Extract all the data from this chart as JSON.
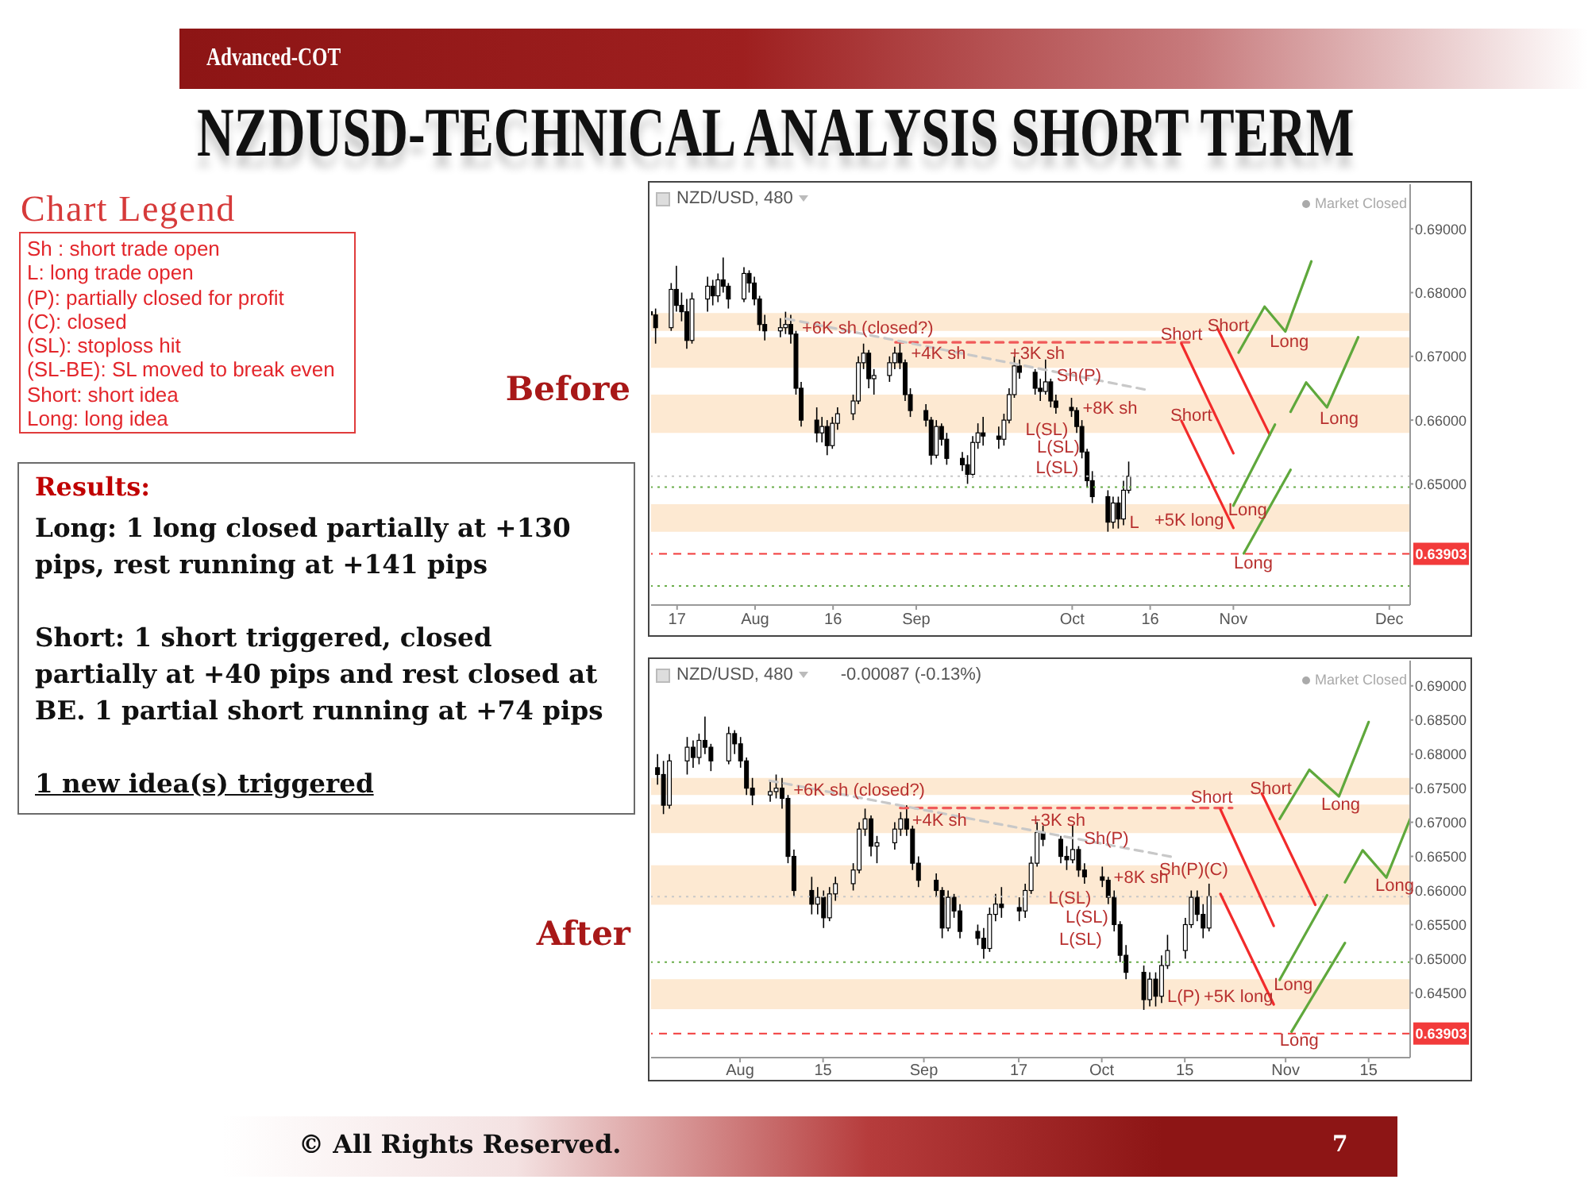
{
  "chart_data": [
    {
      "type": "other",
      "title": "NZDUSD-TECHNICAL ANALYSIS SHORT TERM",
      "subtitle": "Advanced-COT",
      "annotations": [
        "© All Rights Reserved.",
        "7"
      ]
    },
    {
      "type": "other",
      "title": "Chart Legend",
      "annotations": [
        "Sh : short trade open",
        "L: long trade open",
        "(P): partially closed for profit",
        "(C): closed",
        "(SL): stoploss hit",
        "(SL-BE): SL moved to break even",
        "Short: short idea",
        "Long: long idea"
      ]
    },
    {
      "type": "candlestick",
      "title": "Before",
      "subtitle": "NZD/USD, 480",
      "color": "#000000",
      "x": [
        "--07-12",
        "--07-13",
        "--07-16",
        "--07-17",
        "--07-18",
        "--07-19",
        "--07-20",
        "--07-23",
        "--07-24",
        "--07-25",
        "--07-26",
        "--07-27",
        "--07-30",
        "--07-31",
        "--08-01",
        "--08-02",
        "--08-03",
        "--08-06",
        "--08-07",
        "--08-08",
        "--08-09",
        "--08-10",
        "--08-13",
        "--08-14",
        "--08-15",
        "--08-16",
        "--08-17",
        "--08-20",
        "--08-21",
        "--08-22",
        "--08-23",
        "--08-24",
        "--08-27",
        "--08-28",
        "--08-29",
        "--08-30",
        "--08-31",
        "--09-03",
        "--09-04",
        "--09-05",
        "--09-06",
        "--09-07",
        "--09-10",
        "--09-11",
        "--09-12",
        "--09-13",
        "--09-14",
        "--09-17",
        "--09-18",
        "--09-19",
        "--09-20",
        "--09-21",
        "--09-24",
        "--09-25",
        "--09-26",
        "--09-27",
        "--09-28",
        "--10-01",
        "--10-02",
        "--10-03",
        "--10-04",
        "--10-05",
        "--10-08",
        "--10-09",
        "--10-10",
        "--10-11",
        "--10-12"
      ],
      "ohlc": [
        [
          0.677,
          0.679,
          0.6745,
          0.6765
        ],
        [
          0.6765,
          0.6775,
          0.672,
          0.6745
        ],
        [
          0.6745,
          0.6815,
          0.674,
          0.6805
        ],
        [
          0.6805,
          0.6842,
          0.677,
          0.678
        ],
        [
          0.678,
          0.68,
          0.6755,
          0.677
        ],
        [
          0.677,
          0.679,
          0.6712,
          0.6725
        ],
        [
          0.6725,
          0.68,
          0.672,
          0.679
        ],
        [
          0.679,
          0.6825,
          0.677,
          0.681
        ],
        [
          0.681,
          0.682,
          0.678,
          0.6795
        ],
        [
          0.6795,
          0.683,
          0.6785,
          0.682
        ],
        [
          0.682,
          0.6855,
          0.68,
          0.681
        ],
        [
          0.681,
          0.6815,
          0.6775,
          0.679
        ],
        [
          0.679,
          0.684,
          0.6785,
          0.683
        ],
        [
          0.683,
          0.6835,
          0.68,
          0.6815
        ],
        [
          0.6815,
          0.6825,
          0.678,
          0.679
        ],
        [
          0.679,
          0.6795,
          0.674,
          0.675
        ],
        [
          0.675,
          0.6765,
          0.6725,
          0.674
        ],
        [
          0.674,
          0.676,
          0.673,
          0.6745
        ],
        [
          0.6745,
          0.677,
          0.6735,
          0.675
        ],
        [
          0.675,
          0.6765,
          0.672,
          0.6735
        ],
        [
          0.6735,
          0.674,
          0.664,
          0.665
        ],
        [
          0.665,
          0.666,
          0.659,
          0.66
        ],
        [
          0.66,
          0.662,
          0.6565,
          0.658
        ],
        [
          0.658,
          0.6605,
          0.6565,
          0.659
        ],
        [
          0.659,
          0.66,
          0.6545,
          0.656
        ],
        [
          0.656,
          0.6605,
          0.6555,
          0.6595
        ],
        [
          0.6595,
          0.662,
          0.6585,
          0.661
        ],
        [
          0.661,
          0.664,
          0.66,
          0.663
        ],
        [
          0.663,
          0.67,
          0.6625,
          0.669
        ],
        [
          0.669,
          0.672,
          0.668,
          0.6705
        ],
        [
          0.6705,
          0.671,
          0.665,
          0.6665
        ],
        [
          0.6665,
          0.668,
          0.664,
          0.667
        ],
        [
          0.667,
          0.67,
          0.666,
          0.669
        ],
        [
          0.669,
          0.6715,
          0.668,
          0.6705
        ],
        [
          0.6705,
          0.6725,
          0.668,
          0.669
        ],
        [
          0.669,
          0.6695,
          0.663,
          0.664
        ],
        [
          0.664,
          0.665,
          0.6605,
          0.6615
        ],
        [
          0.6615,
          0.6625,
          0.659,
          0.66
        ],
        [
          0.66,
          0.6605,
          0.653,
          0.6545
        ],
        [
          0.6545,
          0.66,
          0.654,
          0.659
        ],
        [
          0.659,
          0.6595,
          0.656,
          0.657
        ],
        [
          0.657,
          0.658,
          0.653,
          0.654
        ],
        [
          0.654,
          0.655,
          0.652,
          0.653
        ],
        [
          0.653,
          0.6545,
          0.65,
          0.6515
        ],
        [
          0.6515,
          0.6575,
          0.651,
          0.6565
        ],
        [
          0.6565,
          0.6595,
          0.6555,
          0.658
        ],
        [
          0.658,
          0.6605,
          0.656,
          0.6575
        ],
        [
          0.6575,
          0.659,
          0.6555,
          0.657
        ],
        [
          0.657,
          0.661,
          0.656,
          0.66
        ],
        [
          0.66,
          0.665,
          0.6595,
          0.664
        ],
        [
          0.664,
          0.67,
          0.6635,
          0.6685
        ],
        [
          0.6685,
          0.6695,
          0.6665,
          0.6675
        ],
        [
          0.6675,
          0.668,
          0.664,
          0.665
        ],
        [
          0.665,
          0.6665,
          0.663,
          0.6645
        ],
        [
          0.6645,
          0.6695,
          0.664,
          0.666
        ],
        [
          0.666,
          0.6665,
          0.662,
          0.663
        ],
        [
          0.663,
          0.664,
          0.661,
          0.662
        ],
        [
          0.662,
          0.6635,
          0.6605,
          0.6615
        ],
        [
          0.6615,
          0.662,
          0.658,
          0.659
        ],
        [
          0.659,
          0.66,
          0.654,
          0.655
        ],
        [
          0.655,
          0.6555,
          0.6495,
          0.6505
        ],
        [
          0.6505,
          0.652,
          0.647,
          0.648
        ],
        [
          0.648,
          0.649,
          0.6425,
          0.644
        ],
        [
          0.644,
          0.648,
          0.643,
          0.647
        ],
        [
          0.647,
          0.648,
          0.643,
          0.6445
        ],
        [
          0.6445,
          0.6505,
          0.6435,
          0.649
        ],
        [
          0.649,
          0.6535,
          0.6485,
          0.6512
        ]
      ],
      "xlim": [
        "--07-12",
        "--12-05"
      ],
      "xticks": [
        {
          "value": "--07-17",
          "label": "17"
        },
        {
          "value": "--08-01",
          "label": "Aug"
        },
        {
          "value": "--08-16",
          "label": "16"
        },
        {
          "value": "--09-01",
          "label": "Sep"
        },
        {
          "value": "--10-01",
          "label": "Oct"
        },
        {
          "value": "--10-16",
          "label": "16"
        },
        {
          "value": "--11-01",
          "label": "Nov"
        },
        {
          "value": "--12-01",
          "label": "Dec"
        }
      ],
      "ylim": [
        0.631,
        0.697
      ],
      "yticks": [
        {
          "value": 0.65,
          "label": "0.65000"
        },
        {
          "value": 0.66,
          "label": "0.66000"
        },
        {
          "value": 0.67,
          "label": "0.67000"
        },
        {
          "value": 0.68,
          "label": "0.68000"
        },
        {
          "value": 0.69,
          "label": "0.69000"
        }
      ],
      "bands": [
        {
          "axis": "y",
          "from": 0.674,
          "to": 0.6768,
          "color": "#fde9d2"
        },
        {
          "axis": "y",
          "from": 0.6682,
          "to": 0.673,
          "color": "#fde9d2"
        },
        {
          "axis": "y",
          "from": 0.658,
          "to": 0.664,
          "color": "#fde9d2"
        },
        {
          "axis": "y",
          "from": 0.6425,
          "to": 0.6468,
          "color": "#fde9d2"
        }
      ],
      "ref_lines": [
        {
          "axis": "y",
          "value": 0.63903,
          "label": "0.63903",
          "color": "#f23b3b",
          "line_style": "dashed"
        },
        {
          "axis": "y",
          "value": 0.6495,
          "color": "#6aad4a",
          "line_style": "dotted"
        },
        {
          "axis": "y",
          "value": 0.634,
          "color": "#6aad4a",
          "line_style": "dotted"
        },
        {
          "axis": "y",
          "value": 0.6512,
          "color": "#c8c8c8",
          "line_style": "dotted"
        }
      ],
      "series": [
        {
          "type": "line",
          "x": [
            "--08-28",
            "--10-24"
          ],
          "values": [
            0.6722,
            0.6722
          ],
          "color": "#f05a5a",
          "line_style": "dashed"
        },
        {
          "type": "line",
          "x": [
            "--08-07",
            "--10-15"
          ],
          "values": [
            0.6759,
            0.6648
          ],
          "color": "#c8c8c8",
          "line_style": "dashed"
        },
        {
          "type": "line",
          "x": [
            "--10-22",
            "--11-01"
          ],
          "values": [
            0.672,
            0.6548
          ],
          "color": "#f22b2b"
        },
        {
          "type": "line",
          "x": [
            "--10-29",
            "--11-08"
          ],
          "values": [
            0.6743,
            0.6577
          ],
          "color": "#f22b2b"
        },
        {
          "type": "line",
          "x": [
            "--10-22",
            "--11-01"
          ],
          "values": [
            0.6599,
            0.6431
          ],
          "color": "#f22b2b"
        },
        {
          "type": "line",
          "x": [
            "--11-02",
            "--11-07",
            "--11-11",
            "--11-16"
          ],
          "values": [
            0.6706,
            0.6778,
            0.6739,
            0.6849
          ],
          "color": "#5fa83c"
        },
        {
          "type": "line",
          "x": [
            "--11-12",
            "--11-15",
            "--11-19",
            "--11-25"
          ],
          "values": [
            0.6613,
            0.6659,
            0.662,
            0.673
          ],
          "color": "#5fa83c"
        },
        {
          "type": "line",
          "x": [
            "--11-01",
            "--11-09"
          ],
          "values": [
            0.6466,
            0.6593
          ],
          "color": "#5fa83c"
        },
        {
          "type": "line",
          "x": [
            "--11-03",
            "--11-12"
          ],
          "values": [
            0.6391,
            0.6522
          ],
          "color": "#5fa83c"
        }
      ],
      "annotations": [
        {
          "text": "+6K sh (closed?)",
          "x": "--08-10",
          "y": 0.6743
        },
        {
          "text": "+4K sh",
          "x": "--08-31",
          "y": 0.6703
        },
        {
          "text": "+3K sh",
          "x": "--09-19",
          "y": 0.6703
        },
        {
          "text": "Sh(P)",
          "x": "--09-28",
          "y": 0.6669
        },
        {
          "text": "+8K sh",
          "x": "--10-03",
          "y": 0.6618
        },
        {
          "text": "L(SL)",
          "x": "--09-22",
          "y": 0.6584
        },
        "L(SL)",
        {
          "text": "L(SL)",
          "x": "--09-24",
          "y": 0.6524
        },
        {
          "text": "L",
          "x": "--10-12",
          "y": 0.6438
        },
        "+5K long",
        {
          "text": "Short",
          "x": "--10-18",
          "y": 0.6734
        },
        {
          "text": "Short",
          "x": "--10-27",
          "y": 0.6747
        },
        "Short",
        {
          "text": "Long",
          "x": "--11-08",
          "y": 0.6722
        },
        "Long",
        {
          "text": "Long",
          "x": "--10-31",
          "y": 0.6458
        },
        "Long",
        "Market Closed"
      ]
    },
    {
      "type": "other",
      "title": "Results:",
      "annotations": [
        "Long: 1 long closed partially at +130 pips, rest running at +141 pips",
        "Short: 1 short triggered, closed partially at +40 pips and rest closed at BE. 1 partial short running at +74 pips",
        "1 new idea(s) triggered"
      ]
    },
    {
      "type": "candlestick",
      "title": "After",
      "subtitle": "NZD/USD, 480",
      "color": "#000000",
      "x": [
        "--07-18",
        "--07-19",
        "--07-20",
        "--07-23",
        "--07-24",
        "--07-25",
        "--07-26",
        "--07-27",
        "--07-30",
        "--07-31",
        "--08-01",
        "--08-02",
        "--08-03",
        "--08-06",
        "--08-07",
        "--08-08",
        "--08-09",
        "--08-10",
        "--08-13",
        "--08-14",
        "--08-15",
        "--08-16",
        "--08-17",
        "--08-20",
        "--08-21",
        "--08-22",
        "--08-23",
        "--08-24",
        "--08-27",
        "--08-28",
        "--08-29",
        "--08-30",
        "--08-31",
        "--09-03",
        "--09-04",
        "--09-05",
        "--09-06",
        "--09-07",
        "--09-10",
        "--09-11",
        "--09-12",
        "--09-13",
        "--09-14",
        "--09-17",
        "--09-18",
        "--09-19",
        "--09-20",
        "--09-21",
        "--09-24",
        "--09-25",
        "--09-26",
        "--09-27",
        "--09-28",
        "--10-01",
        "--10-02",
        "--10-03",
        "--10-04",
        "--10-05",
        "--10-08",
        "--10-09",
        "--10-10",
        "--10-11",
        "--10-12",
        "--10-15",
        "--10-16",
        "--10-17",
        "--10-18",
        "--10-19"
      ],
      "ohlc": [
        [
          0.678,
          0.68,
          0.6755,
          0.677
        ],
        [
          0.677,
          0.679,
          0.6712,
          0.6725
        ],
        [
          0.6725,
          0.68,
          0.672,
          0.679
        ],
        [
          0.679,
          0.6825,
          0.677,
          0.681
        ],
        [
          0.681,
          0.682,
          0.678,
          0.6795
        ],
        [
          0.6795,
          0.683,
          0.6785,
          0.682
        ],
        [
          0.682,
          0.6855,
          0.68,
          0.681
        ],
        [
          0.681,
          0.6815,
          0.6775,
          0.679
        ],
        [
          0.679,
          0.684,
          0.6785,
          0.683
        ],
        [
          0.683,
          0.6835,
          0.68,
          0.6815
        ],
        [
          0.6815,
          0.6825,
          0.678,
          0.679
        ],
        [
          0.679,
          0.6795,
          0.674,
          0.675
        ],
        [
          0.675,
          0.6765,
          0.6725,
          0.674
        ],
        [
          0.674,
          0.676,
          0.673,
          0.6745
        ],
        [
          0.6745,
          0.677,
          0.6735,
          0.675
        ],
        [
          0.675,
          0.6765,
          0.672,
          0.6735
        ],
        [
          0.6735,
          0.674,
          0.664,
          0.665
        ],
        [
          0.665,
          0.666,
          0.659,
          0.66
        ],
        [
          0.66,
          0.662,
          0.6565,
          0.658
        ],
        [
          0.658,
          0.6605,
          0.6565,
          0.659
        ],
        [
          0.659,
          0.66,
          0.6545,
          0.656
        ],
        [
          0.656,
          0.6605,
          0.6555,
          0.6595
        ],
        [
          0.6595,
          0.662,
          0.6585,
          0.661
        ],
        [
          0.661,
          0.664,
          0.66,
          0.663
        ],
        [
          0.663,
          0.67,
          0.6625,
          0.669
        ],
        [
          0.669,
          0.672,
          0.668,
          0.6705
        ],
        [
          0.6705,
          0.671,
          0.665,
          0.6665
        ],
        [
          0.6665,
          0.668,
          0.664,
          0.667
        ],
        [
          0.667,
          0.67,
          0.666,
          0.669
        ],
        [
          0.669,
          0.6715,
          0.668,
          0.6705
        ],
        [
          0.6705,
          0.6725,
          0.668,
          0.669
        ],
        [
          0.669,
          0.6695,
          0.663,
          0.664
        ],
        [
          0.664,
          0.665,
          0.6605,
          0.6615
        ],
        [
          0.6615,
          0.6625,
          0.659,
          0.66
        ],
        [
          0.66,
          0.6605,
          0.653,
          0.6545
        ],
        [
          0.6545,
          0.66,
          0.654,
          0.659
        ],
        [
          0.659,
          0.6595,
          0.656,
          0.657
        ],
        [
          0.657,
          0.658,
          0.653,
          0.654
        ],
        [
          0.654,
          0.655,
          0.652,
          0.653
        ],
        [
          0.653,
          0.6545,
          0.65,
          0.6515
        ],
        [
          0.6515,
          0.6575,
          0.651,
          0.6565
        ],
        [
          0.6565,
          0.6595,
          0.6555,
          0.658
        ],
        [
          0.658,
          0.6605,
          0.656,
          0.6575
        ],
        [
          0.6575,
          0.659,
          0.6555,
          0.657
        ],
        [
          0.657,
          0.661,
          0.656,
          0.66
        ],
        [
          0.66,
          0.665,
          0.6595,
          0.664
        ],
        [
          0.664,
          0.67,
          0.6635,
          0.6685
        ],
        [
          0.6685,
          0.6695,
          0.6665,
          0.6675
        ],
        [
          0.6675,
          0.668,
          0.664,
          0.665
        ],
        [
          0.665,
          0.6665,
          0.663,
          0.6645
        ],
        [
          0.6645,
          0.6695,
          0.664,
          0.666
        ],
        [
          0.666,
          0.6665,
          0.662,
          0.663
        ],
        [
          0.663,
          0.664,
          0.661,
          0.662
        ],
        [
          0.662,
          0.6635,
          0.6605,
          0.6615
        ],
        [
          0.6615,
          0.662,
          0.658,
          0.659
        ],
        [
          0.659,
          0.66,
          0.654,
          0.655
        ],
        [
          0.655,
          0.6555,
          0.6495,
          0.6505
        ],
        [
          0.6505,
          0.652,
          0.647,
          0.648
        ],
        [
          0.648,
          0.649,
          0.6425,
          0.644
        ],
        [
          0.644,
          0.648,
          0.643,
          0.647
        ],
        [
          0.647,
          0.648,
          0.643,
          0.6445
        ],
        [
          0.6445,
          0.6505,
          0.6435,
          0.649
        ],
        [
          0.649,
          0.6535,
          0.6485,
          0.6512
        ],
        [
          0.6512,
          0.656,
          0.65,
          0.655
        ],
        [
          0.655,
          0.66,
          0.6545,
          0.659
        ],
        [
          0.659,
          0.66,
          0.6555,
          0.6565
        ],
        [
          0.6565,
          0.658,
          0.653,
          0.6545
        ],
        [
          0.6545,
          0.661,
          0.654,
          0.6591
        ]
      ],
      "xlim": [
        "--07-17",
        "--11-22"
      ],
      "xticks": [
        {
          "value": "--08-01",
          "label": "Aug"
        },
        {
          "value": "--08-15",
          "label": "15"
        },
        {
          "value": "--09-01",
          "label": "Sep"
        },
        {
          "value": "--09-17",
          "label": "17"
        },
        {
          "value": "--10-01",
          "label": "Oct"
        },
        {
          "value": "--10-15",
          "label": "15"
        },
        {
          "value": "--11-01",
          "label": "Nov"
        },
        {
          "value": "--11-15",
          "label": "15"
        }
      ],
      "ylim": [
        0.6355,
        0.6937
      ],
      "yticks": [
        {
          "value": 0.645,
          "label": "0.64500"
        },
        {
          "value": 0.65,
          "label": "0.65000"
        },
        {
          "value": 0.655,
          "label": "0.65500"
        },
        {
          "value": 0.66,
          "label": "0.66000"
        },
        {
          "value": 0.665,
          "label": "0.66500"
        },
        {
          "value": 0.67,
          "label": "0.67000"
        },
        {
          "value": 0.675,
          "label": "0.67500"
        },
        {
          "value": 0.68,
          "label": "0.68000"
        },
        {
          "value": 0.685,
          "label": "0.68500"
        },
        {
          "value": 0.69,
          "label": "0.69000"
        }
      ],
      "bands": [
        {
          "axis": "y",
          "from": 0.674,
          "to": 0.6765,
          "color": "#fde9d2"
        },
        {
          "axis": "y",
          "from": 0.6684,
          "to": 0.6726,
          "color": "#fde9d2"
        },
        {
          "axis": "y",
          "from": 0.6579,
          "to": 0.6637,
          "color": "#fde9d2"
        },
        {
          "axis": "y",
          "from": 0.6426,
          "to": 0.647,
          "color": "#fde9d2"
        }
      ],
      "ref_lines": [
        {
          "axis": "y",
          "value": 0.63903,
          "label": "0.63903",
          "color": "#f23b3b",
          "line_style": "dashed"
        },
        {
          "axis": "y",
          "value": 0.6495,
          "color": "#6aad4a",
          "line_style": "dotted"
        },
        {
          "axis": "y",
          "value": 0.6591,
          "color": "#c8c8c8",
          "line_style": "dotted"
        }
      ],
      "series": [
        {
          "type": "line",
          "x": [
            "--08-28",
            "--10-23"
          ],
          "values": [
            0.6721,
            0.6721
          ],
          "color": "#f05a5a",
          "line_style": "dashed"
        },
        {
          "type": "line",
          "x": [
            "--08-06",
            "--10-13"
          ],
          "values": [
            0.6761,
            0.6649
          ],
          "color": "#c8c8c8",
          "line_style": "dashed"
        },
        {
          "type": "line",
          "x": [
            "--10-21",
            "--10-30"
          ],
          "values": [
            0.6719,
            0.6548
          ],
          "color": "#f22b2b"
        },
        {
          "type": "line",
          "x": [
            "--10-28",
            "--11-06"
          ],
          "values": [
            0.6742,
            0.6579
          ],
          "color": "#f22b2b"
        },
        {
          "type": "line",
          "x": [
            "--10-21",
            "--10-30"
          ],
          "values": [
            0.6595,
            0.6433
          ],
          "color": "#f22b2b"
        },
        {
          "type": "line",
          "x": [
            "--10-31",
            "--11-05",
            "--11-10",
            "--11-15"
          ],
          "values": [
            0.6705,
            0.6777,
            0.6738,
            0.6847
          ],
          "color": "#5fa83c"
        },
        {
          "type": "line",
          "x": [
            "--11-11",
            "--11-14",
            "--11-18",
            "--11-22"
          ],
          "values": [
            0.6612,
            0.6659,
            0.6619,
            0.6705
          ],
          "color": "#5fa83c"
        },
        {
          "type": "line",
          "x": [
            "--10-31",
            "--11-08"
          ],
          "values": [
            0.6469,
            0.6593
          ],
          "color": "#5fa83c"
        },
        {
          "type": "line",
          "x": [
            "--11-02",
            "--11-11"
          ],
          "values": [
            0.6393,
            0.6523
          ],
          "color": "#5fa83c"
        }
      ],
      "annotations": [
        "-0.00087 (-0.13%)",
        {
          "text": "+6K sh (closed?)",
          "x": "--08-10",
          "y": 0.6746
        },
        {
          "text": "+4K sh",
          "x": "--08-30",
          "y": 0.6702
        },
        {
          "text": "+3K sh",
          "x": "--09-19",
          "y": 0.6702
        },
        {
          "text": "Sh(P)",
          "x": "--09-28",
          "y": 0.6675
        },
        {
          "text": "L(SL)",
          "x": "--09-22",
          "y": 0.6588
        },
        "L(SL)",
        "L(SL)",
        {
          "text": "+8K sh",
          "x": "--10-03",
          "y": 0.6618
        },
        "Sh(P)(C)",
        "L(P)",
        "+5K long",
        {
          "text": "Short",
          "x": "--10-16",
          "y": 0.6736
        },
        {
          "text": "Short",
          "x": "--10-26",
          "y": 0.6748
        },
        {
          "text": "Long",
          "x": "--11-07",
          "y": 0.6725
        },
        "Long",
        {
          "text": "Long",
          "x": "--10-30",
          "y": 0.6461
        },
        {
          "text": "Long",
          "x": "--10-31",
          "y": 0.638
        },
        "Market Closed"
      ]
    }
  ]
}
